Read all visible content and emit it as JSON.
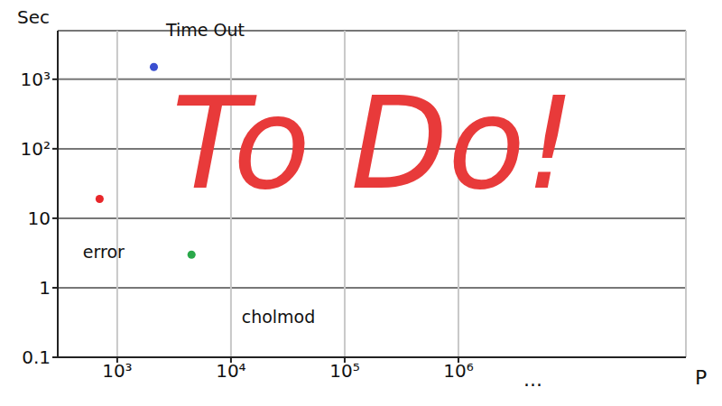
{
  "chart_data": {
    "type": "scatter",
    "x_label": "P",
    "y_label": "Sec",
    "log": true,
    "grid": true,
    "xlim": [
      300,
      100000000
    ],
    "xticks": [
      {
        "value": 1000,
        "label": "10³"
      },
      {
        "value": 10000,
        "label": "10⁴"
      },
      {
        "value": 100000,
        "label": "10⁵"
      },
      {
        "value": 1000000,
        "label": "10⁶"
      }
    ],
    "ylim": [
      0.1,
      5000
    ],
    "yticks": [
      0.1,
      1,
      10,
      {
        "value": 100,
        "label": "10²"
      },
      {
        "value": 1000,
        "label": "10³"
      }
    ],
    "series": [
      {
        "name": "Time Out",
        "color": "#3a4fd0",
        "x": [
          2100
        ],
        "values": [
          1500
        ]
      },
      {
        "name": "error",
        "color": "#e8262a",
        "x": [
          700
        ],
        "values": [
          19
        ]
      },
      {
        "name": "cholmod",
        "color": "#2aa84a",
        "x": [
          4500
        ],
        "values": [
          3
        ]
      }
    ],
    "annotations": [
      {
        "text": "To Do!",
        "color": "#e83a3a"
      },
      {
        "text": "..."
      }
    ]
  }
}
